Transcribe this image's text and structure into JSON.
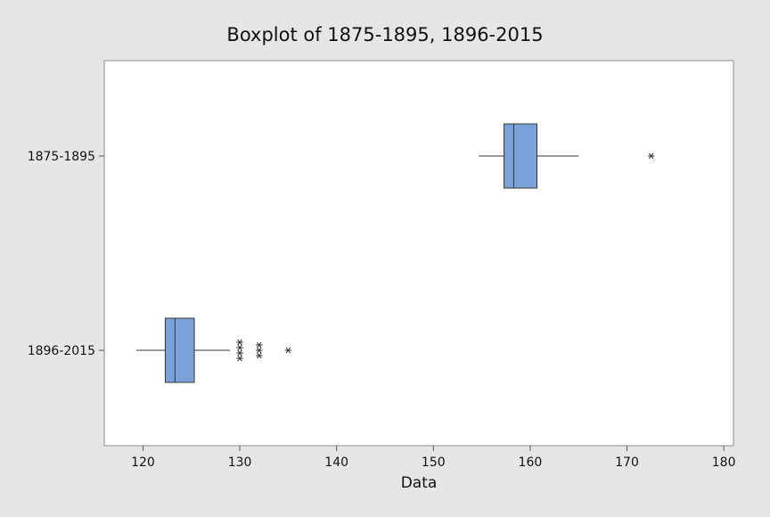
{
  "chart_data": {
    "type": "boxplot",
    "title": "Boxplot of 1875-1895, 1896-2015",
    "xlabel": "Data",
    "ylabel": "",
    "xlim": [
      116,
      181
    ],
    "x_ticks": [
      120,
      130,
      140,
      150,
      160,
      170,
      180
    ],
    "grid": false,
    "legend": "none",
    "box_color": "#7ba3da",
    "groups": [
      {
        "name": "1875-1895",
        "whisker_low": 154.7,
        "q1": 157.3,
        "median": 158.3,
        "q3": 160.7,
        "whisker_high": 165.0,
        "outliers": [
          172.5
        ]
      },
      {
        "name": "1896-2015",
        "whisker_low": 119.3,
        "q1": 122.3,
        "median": 123.3,
        "q3": 125.3,
        "whisker_high": 129.0,
        "outliers": [
          130,
          130,
          130,
          130,
          132,
          132,
          132,
          135
        ]
      }
    ]
  }
}
